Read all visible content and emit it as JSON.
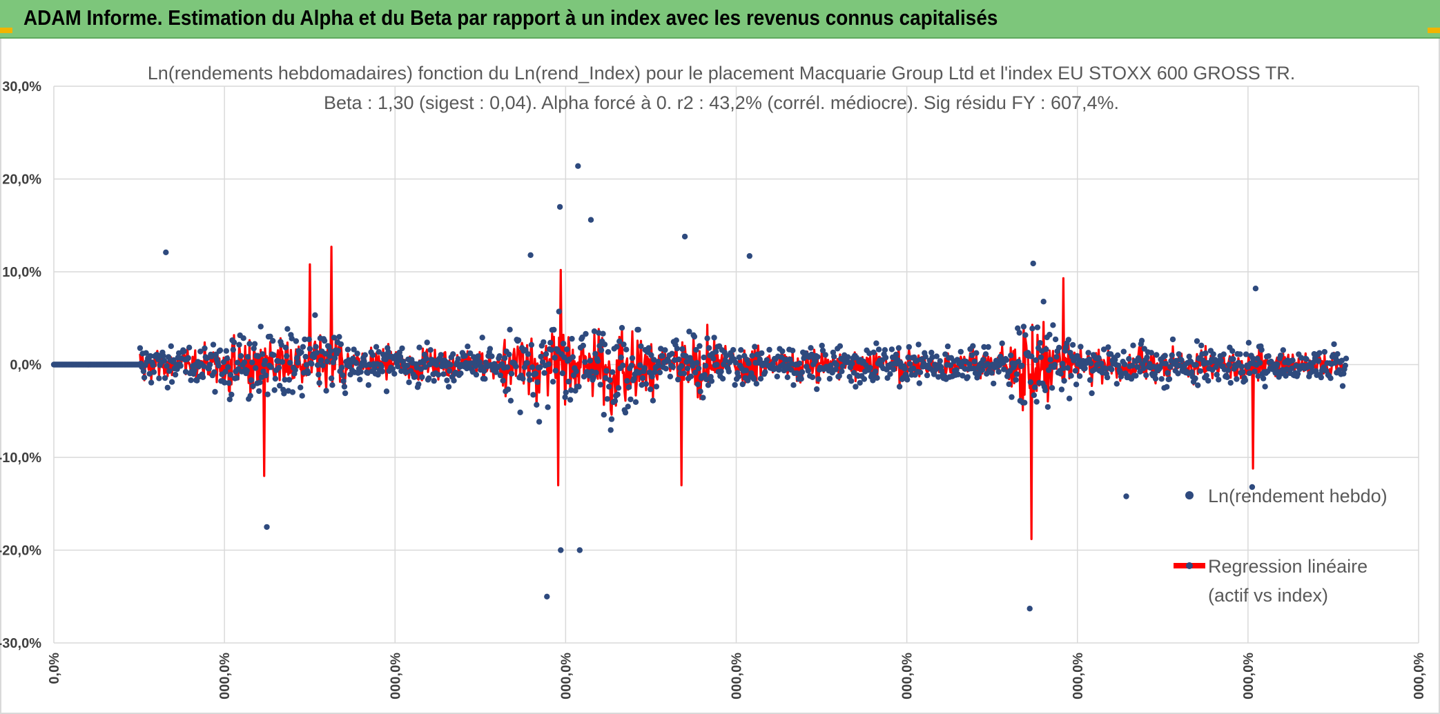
{
  "header": {
    "title": "ADAM Informe. Estimation du Alpha et du Beta par rapport à un index avec les revenus connus capitalisés",
    "background": "#7dc67b",
    "corner_color": "#f2b400"
  },
  "chart_data": {
    "type": "line",
    "title": "Ln(rendements hebdomadaires) fonction du Ln(rend_Index) pour le placement Macquarie Group Ltd et l'index EU STOXX 600 GROSS TR.",
    "subtitle": "Beta : 1,30 (sigest : 0,04). Alpha forcé à 0. r2 : 43,2% (corrél. médiocre). Sig résidu FY : 607,4%.",
    "xlabel": "",
    "ylabel": "",
    "ylim": [
      -0.3,
      0.3
    ],
    "y_ticks": [
      "30,0%",
      "20,0%",
      "10,0%",
      "0,0%",
      "-10,0%",
      "-20,0%",
      "-30,0%"
    ],
    "x_ticks": [
      "0,0%",
      "000,0%",
      "000,0%",
      "000,0%",
      "000,0%",
      "000,0%",
      "000,0%",
      "000,0%",
      "000,0%"
    ],
    "grid": true,
    "legend_position": "right",
    "points_total": 1500,
    "flat_points": 100,
    "series": [
      {
        "name": "Ln(rendement hebdo)",
        "style": "markers",
        "color": "#2e4a7e",
        "extremes": [
          {
            "i": 130,
            "y": 0.121
          },
          {
            "i": 247,
            "y": -0.175
          },
          {
            "i": 553,
            "y": 0.118
          },
          {
            "i": 572,
            "y": -0.25
          },
          {
            "i": 588,
            "y": -0.2
          },
          {
            "i": 587,
            "y": 0.17
          },
          {
            "i": 608,
            "y": 0.214
          },
          {
            "i": 610,
            "y": -0.2
          },
          {
            "i": 623,
            "y": 0.156
          },
          {
            "i": 732,
            "y": 0.138
          },
          {
            "i": 807,
            "y": 0.117
          },
          {
            "i": 1132,
            "y": -0.263
          },
          {
            "i": 1136,
            "y": 0.109
          },
          {
            "i": 1244,
            "y": -0.142
          },
          {
            "i": 1390,
            "y": -0.132
          },
          {
            "i": 1394,
            "y": 0.082
          }
        ]
      },
      {
        "name": "Regression linéaire (actif vs index)",
        "name_line1": "Regression linéaire",
        "name_line2": "(actif vs index)",
        "style": "line",
        "color": "#ff0000",
        "extremes": [
          {
            "i": 244,
            "y": -0.12
          },
          {
            "i": 297,
            "y": 0.108
          },
          {
            "i": 322,
            "y": 0.127
          },
          {
            "i": 588,
            "y": 0.102
          },
          {
            "i": 585,
            "y": -0.13
          },
          {
            "i": 728,
            "y": -0.13
          },
          {
            "i": 1134,
            "y": -0.188
          },
          {
            "i": 1171,
            "y": 0.093
          },
          {
            "i": 1391,
            "y": -0.112
          }
        ]
      }
    ]
  }
}
